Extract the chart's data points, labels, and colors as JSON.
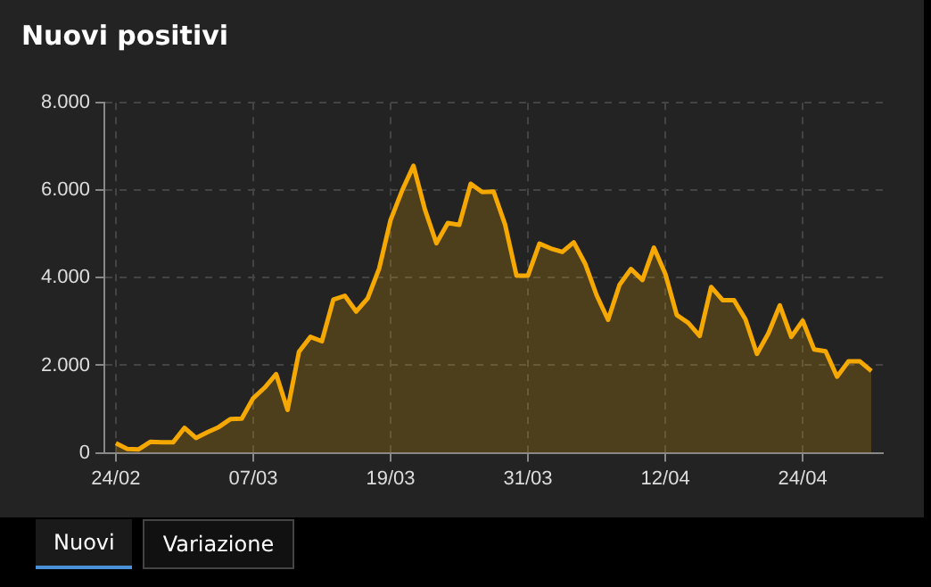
{
  "chart_data": {
    "type": "area",
    "title": "Nuovi positivi",
    "x": [
      "--02-24",
      "--02-25",
      "--02-26",
      "--02-27",
      "--02-28",
      "--02-29",
      "--03-01",
      "--03-02",
      "--03-03",
      "--03-04",
      "--03-05",
      "--03-06",
      "--03-07",
      "--03-08",
      "--03-09",
      "--03-10",
      "--03-11",
      "--03-12",
      "--03-13",
      "--03-14",
      "--03-15",
      "--03-16",
      "--03-17",
      "--03-18",
      "--03-19",
      "--03-20",
      "--03-21",
      "--03-22",
      "--03-23",
      "--03-24",
      "--03-25",
      "--03-26",
      "--03-27",
      "--03-28",
      "--03-29",
      "--03-30",
      "--03-31",
      "--04-01",
      "--04-02",
      "--04-03",
      "--04-04",
      "--04-05",
      "--04-06",
      "--04-07",
      "--04-08",
      "--04-09",
      "--04-10",
      "--04-11",
      "--04-12",
      "--04-13",
      "--04-14",
      "--04-15",
      "--04-16",
      "--04-17",
      "--04-18",
      "--04-19",
      "--04-20",
      "--04-21",
      "--04-22",
      "--04-23",
      "--04-24",
      "--04-25",
      "--04-26",
      "--04-27",
      "--04-28",
      "--04-29",
      "--04-30"
    ],
    "series": [
      {
        "color": "#f5a800",
        "values": [
          220,
          90,
          80,
          250,
          240,
          240,
          570,
          340,
          470,
          590,
          770,
          780,
          1250,
          1490,
          1800,
          980,
          2310,
          2650,
          2550,
          3500,
          3590,
          3230,
          3530,
          4210,
          5320,
          5990,
          6560,
          5560,
          4790,
          5250,
          5210,
          6150,
          5960,
          5970,
          5220,
          4050,
          4050,
          4780,
          4670,
          4590,
          4810,
          4320,
          3600,
          3040,
          3840,
          4200,
          3950,
          4690,
          4090,
          3150,
          2970,
          2670,
          3790,
          3490,
          3490,
          3050,
          2260,
          2730,
          3370,
          2650,
          3020,
          2360,
          2320,
          1740,
          2090,
          2090,
          1870
        ]
      }
    ],
    "xlim": [
      "--02-23",
      "--05-01"
    ],
    "xticks": [
      {
        "value": "--02-24",
        "label": "24/02"
      },
      {
        "value": "--03-07",
        "label": "07/03"
      },
      {
        "value": "--03-19",
        "label": "19/03"
      },
      {
        "value": "--03-31",
        "label": "31/03"
      },
      {
        "value": "--04-12",
        "label": "12/04"
      },
      {
        "value": "--04-24",
        "label": "24/04"
      }
    ],
    "ylim": [
      0,
      8000
    ],
    "yticks": [
      0,
      {
        "value": 2000,
        "label": "2.000"
      },
      {
        "value": 4000,
        "label": "4.000"
      },
      {
        "value": 6000,
        "label": "6.000"
      },
      {
        "value": 8000,
        "label": "8.000"
      }
    ],
    "grid": true,
    "marker": "none",
    "line_style": "solid",
    "annotations": [
      "Nuovi",
      "Variazione"
    ]
  }
}
